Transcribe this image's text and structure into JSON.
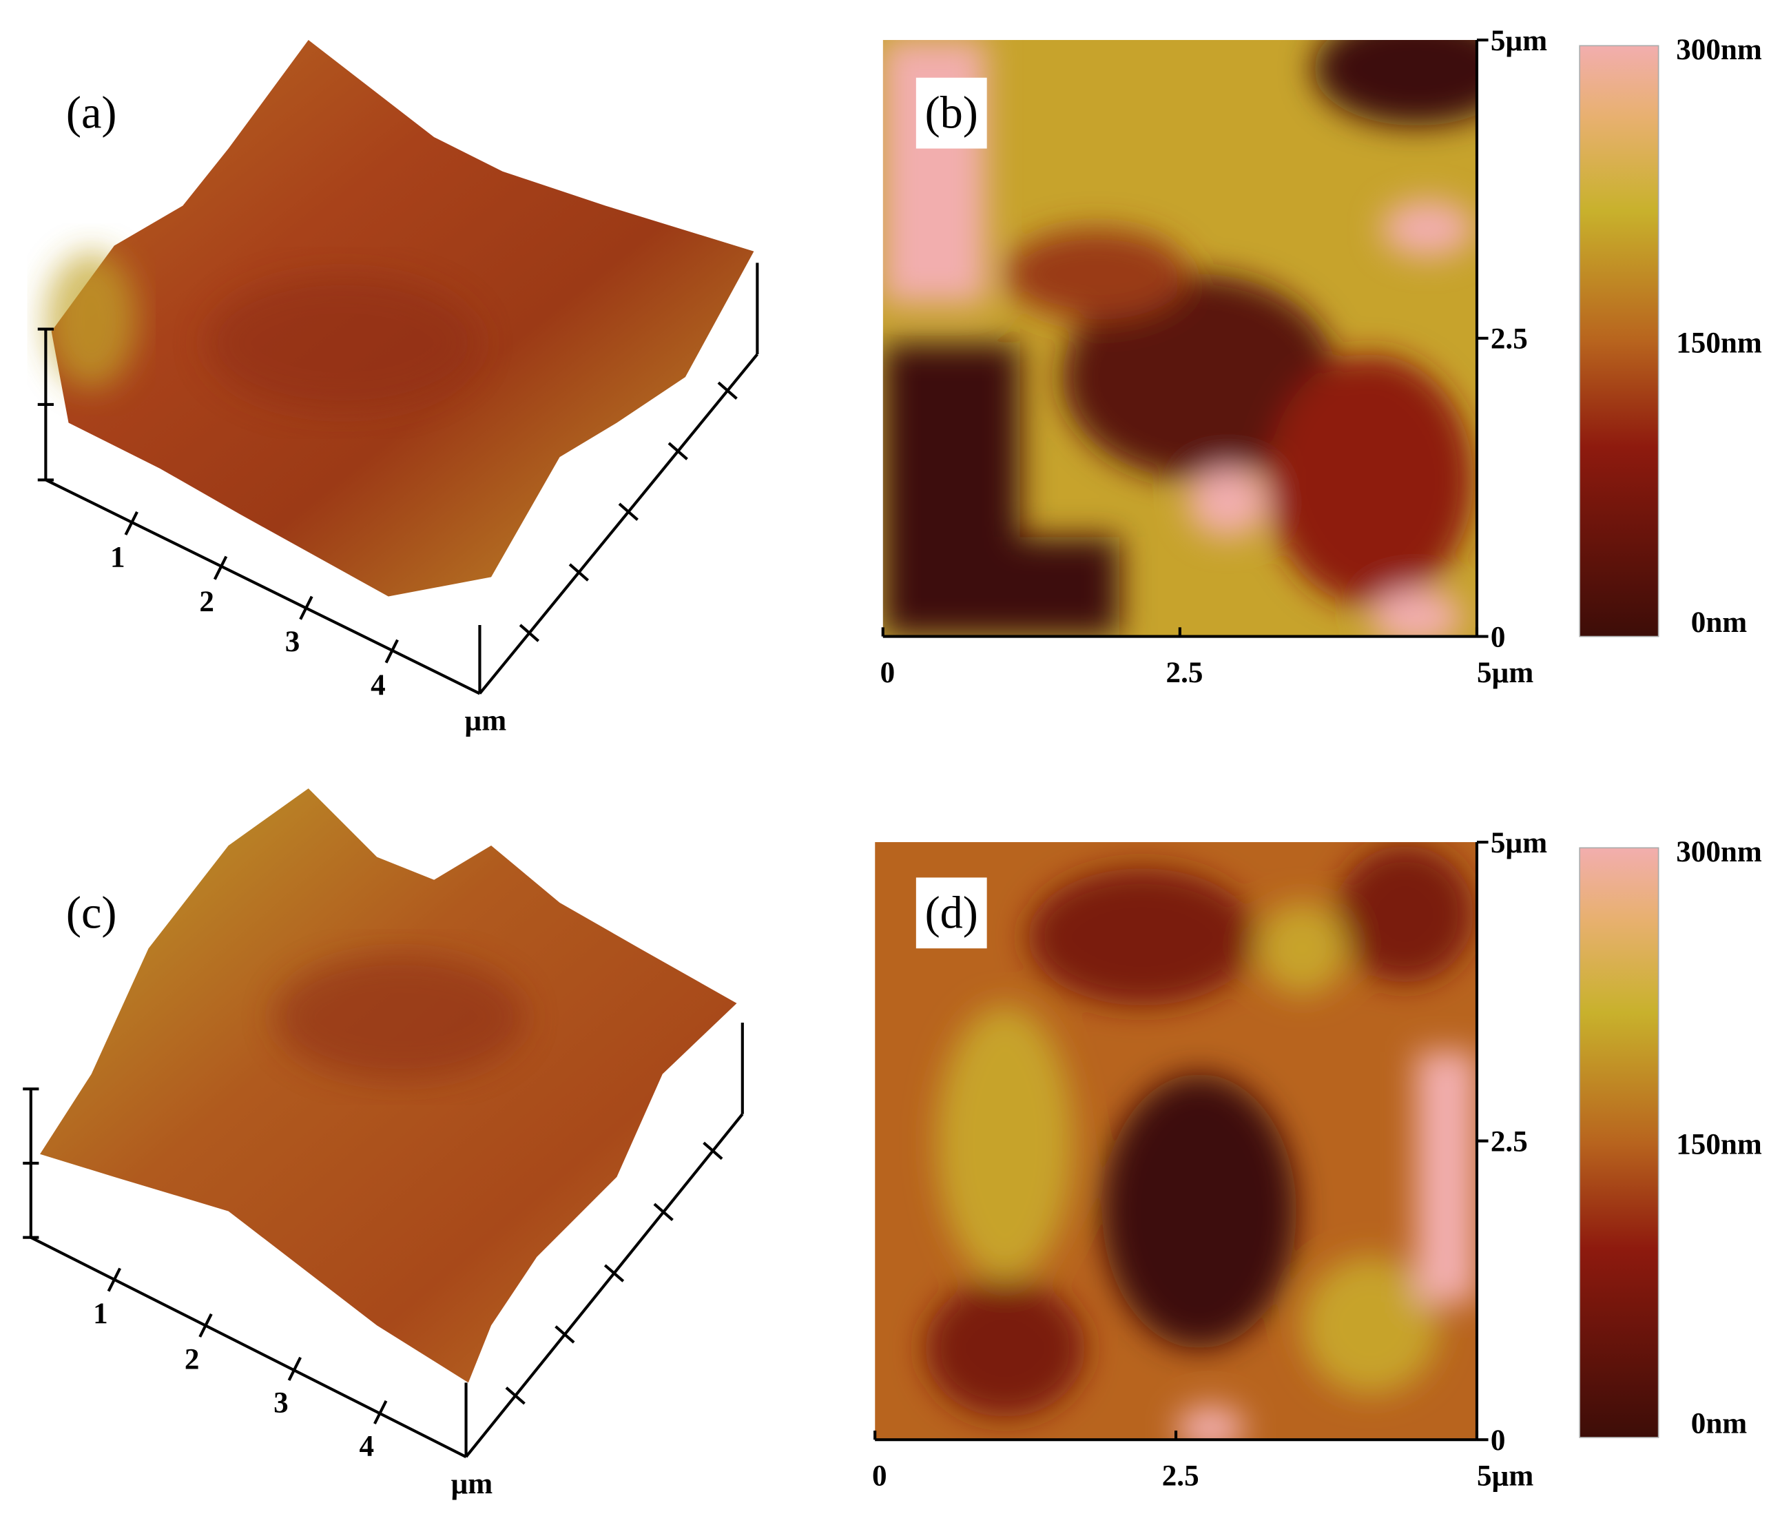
{
  "panels": [
    {
      "label": "(a)",
      "x_ticks": [
        "1",
        "2",
        "3",
        "4"
      ],
      "unit": "µm"
    },
    {
      "label": "(b)",
      "x_ticks": [
        "0",
        "2.5",
        "5µm"
      ],
      "y_ticks": [
        "5µm",
        "2.5",
        "0"
      ],
      "colorbar": [
        "300nm",
        "150nm",
        "0nm"
      ]
    },
    {
      "label": "(c)",
      "x_ticks": [
        "1",
        "2",
        "3",
        "4"
      ],
      "unit": "µm"
    },
    {
      "label": "(d)",
      "x_ticks": [
        "0",
        "2.5",
        "5µm"
      ],
      "y_ticks": [
        "5µm",
        "2.5",
        "0"
      ],
      "colorbar": [
        "300nm",
        "150nm",
        "0nm"
      ]
    }
  ]
}
